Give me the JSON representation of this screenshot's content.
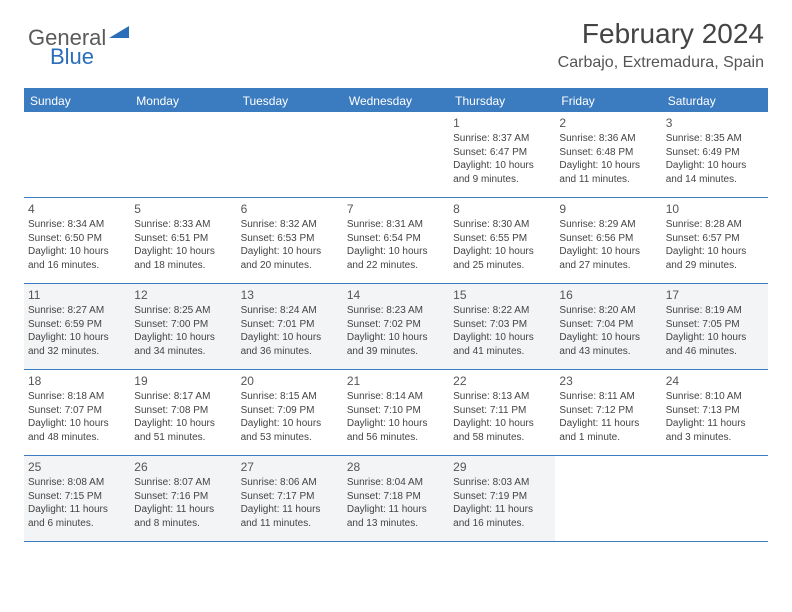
{
  "logo": {
    "text1": "General",
    "text2": "Blue"
  },
  "header": {
    "title": "February 2024",
    "location": "Carbajo, Extremadura, Spain"
  },
  "colors": {
    "brand": "#3b7bbf",
    "text": "#444444",
    "shade": "#f3f4f5"
  },
  "dayNames": [
    "Sunday",
    "Monday",
    "Tuesday",
    "Wednesday",
    "Thursday",
    "Friday",
    "Saturday"
  ],
  "weeks": [
    [
      {
        "num": "",
        "lines": []
      },
      {
        "num": "",
        "lines": []
      },
      {
        "num": "",
        "lines": []
      },
      {
        "num": "",
        "lines": []
      },
      {
        "num": "1",
        "lines": [
          "Sunrise: 8:37 AM",
          "Sunset: 6:47 PM",
          "Daylight: 10 hours",
          "and 9 minutes."
        ]
      },
      {
        "num": "2",
        "lines": [
          "Sunrise: 8:36 AM",
          "Sunset: 6:48 PM",
          "Daylight: 10 hours",
          "and 11 minutes."
        ]
      },
      {
        "num": "3",
        "lines": [
          "Sunrise: 8:35 AM",
          "Sunset: 6:49 PM",
          "Daylight: 10 hours",
          "and 14 minutes."
        ]
      }
    ],
    [
      {
        "num": "4",
        "lines": [
          "Sunrise: 8:34 AM",
          "Sunset: 6:50 PM",
          "Daylight: 10 hours",
          "and 16 minutes."
        ]
      },
      {
        "num": "5",
        "lines": [
          "Sunrise: 8:33 AM",
          "Sunset: 6:51 PM",
          "Daylight: 10 hours",
          "and 18 minutes."
        ]
      },
      {
        "num": "6",
        "lines": [
          "Sunrise: 8:32 AM",
          "Sunset: 6:53 PM",
          "Daylight: 10 hours",
          "and 20 minutes."
        ]
      },
      {
        "num": "7",
        "lines": [
          "Sunrise: 8:31 AM",
          "Sunset: 6:54 PM",
          "Daylight: 10 hours",
          "and 22 minutes."
        ]
      },
      {
        "num": "8",
        "lines": [
          "Sunrise: 8:30 AM",
          "Sunset: 6:55 PM",
          "Daylight: 10 hours",
          "and 25 minutes."
        ]
      },
      {
        "num": "9",
        "lines": [
          "Sunrise: 8:29 AM",
          "Sunset: 6:56 PM",
          "Daylight: 10 hours",
          "and 27 minutes."
        ]
      },
      {
        "num": "10",
        "lines": [
          "Sunrise: 8:28 AM",
          "Sunset: 6:57 PM",
          "Daylight: 10 hours",
          "and 29 minutes."
        ]
      }
    ],
    [
      {
        "num": "11",
        "lines": [
          "Sunrise: 8:27 AM",
          "Sunset: 6:59 PM",
          "Daylight: 10 hours",
          "and 32 minutes."
        ]
      },
      {
        "num": "12",
        "lines": [
          "Sunrise: 8:25 AM",
          "Sunset: 7:00 PM",
          "Daylight: 10 hours",
          "and 34 minutes."
        ]
      },
      {
        "num": "13",
        "lines": [
          "Sunrise: 8:24 AM",
          "Sunset: 7:01 PM",
          "Daylight: 10 hours",
          "and 36 minutes."
        ]
      },
      {
        "num": "14",
        "lines": [
          "Sunrise: 8:23 AM",
          "Sunset: 7:02 PM",
          "Daylight: 10 hours",
          "and 39 minutes."
        ]
      },
      {
        "num": "15",
        "lines": [
          "Sunrise: 8:22 AM",
          "Sunset: 7:03 PM",
          "Daylight: 10 hours",
          "and 41 minutes."
        ]
      },
      {
        "num": "16",
        "lines": [
          "Sunrise: 8:20 AM",
          "Sunset: 7:04 PM",
          "Daylight: 10 hours",
          "and 43 minutes."
        ]
      },
      {
        "num": "17",
        "lines": [
          "Sunrise: 8:19 AM",
          "Sunset: 7:05 PM",
          "Daylight: 10 hours",
          "and 46 minutes."
        ]
      }
    ],
    [
      {
        "num": "18",
        "lines": [
          "Sunrise: 8:18 AM",
          "Sunset: 7:07 PM",
          "Daylight: 10 hours",
          "and 48 minutes."
        ]
      },
      {
        "num": "19",
        "lines": [
          "Sunrise: 8:17 AM",
          "Sunset: 7:08 PM",
          "Daylight: 10 hours",
          "and 51 minutes."
        ]
      },
      {
        "num": "20",
        "lines": [
          "Sunrise: 8:15 AM",
          "Sunset: 7:09 PM",
          "Daylight: 10 hours",
          "and 53 minutes."
        ]
      },
      {
        "num": "21",
        "lines": [
          "Sunrise: 8:14 AM",
          "Sunset: 7:10 PM",
          "Daylight: 10 hours",
          "and 56 minutes."
        ]
      },
      {
        "num": "22",
        "lines": [
          "Sunrise: 8:13 AM",
          "Sunset: 7:11 PM",
          "Daylight: 10 hours",
          "and 58 minutes."
        ]
      },
      {
        "num": "23",
        "lines": [
          "Sunrise: 8:11 AM",
          "Sunset: 7:12 PM",
          "Daylight: 11 hours",
          "and 1 minute."
        ]
      },
      {
        "num": "24",
        "lines": [
          "Sunrise: 8:10 AM",
          "Sunset: 7:13 PM",
          "Daylight: 11 hours",
          "and 3 minutes."
        ]
      }
    ],
    [
      {
        "num": "25",
        "lines": [
          "Sunrise: 8:08 AM",
          "Sunset: 7:15 PM",
          "Daylight: 11 hours",
          "and 6 minutes."
        ]
      },
      {
        "num": "26",
        "lines": [
          "Sunrise: 8:07 AM",
          "Sunset: 7:16 PM",
          "Daylight: 11 hours",
          "and 8 minutes."
        ]
      },
      {
        "num": "27",
        "lines": [
          "Sunrise: 8:06 AM",
          "Sunset: 7:17 PM",
          "Daylight: 11 hours",
          "and 11 minutes."
        ]
      },
      {
        "num": "28",
        "lines": [
          "Sunrise: 8:04 AM",
          "Sunset: 7:18 PM",
          "Daylight: 11 hours",
          "and 13 minutes."
        ]
      },
      {
        "num": "29",
        "lines": [
          "Sunrise: 8:03 AM",
          "Sunset: 7:19 PM",
          "Daylight: 11 hours",
          "and 16 minutes."
        ]
      },
      {
        "num": "",
        "lines": []
      },
      {
        "num": "",
        "lines": []
      }
    ]
  ],
  "shadedWeeks": [
    2,
    4
  ]
}
